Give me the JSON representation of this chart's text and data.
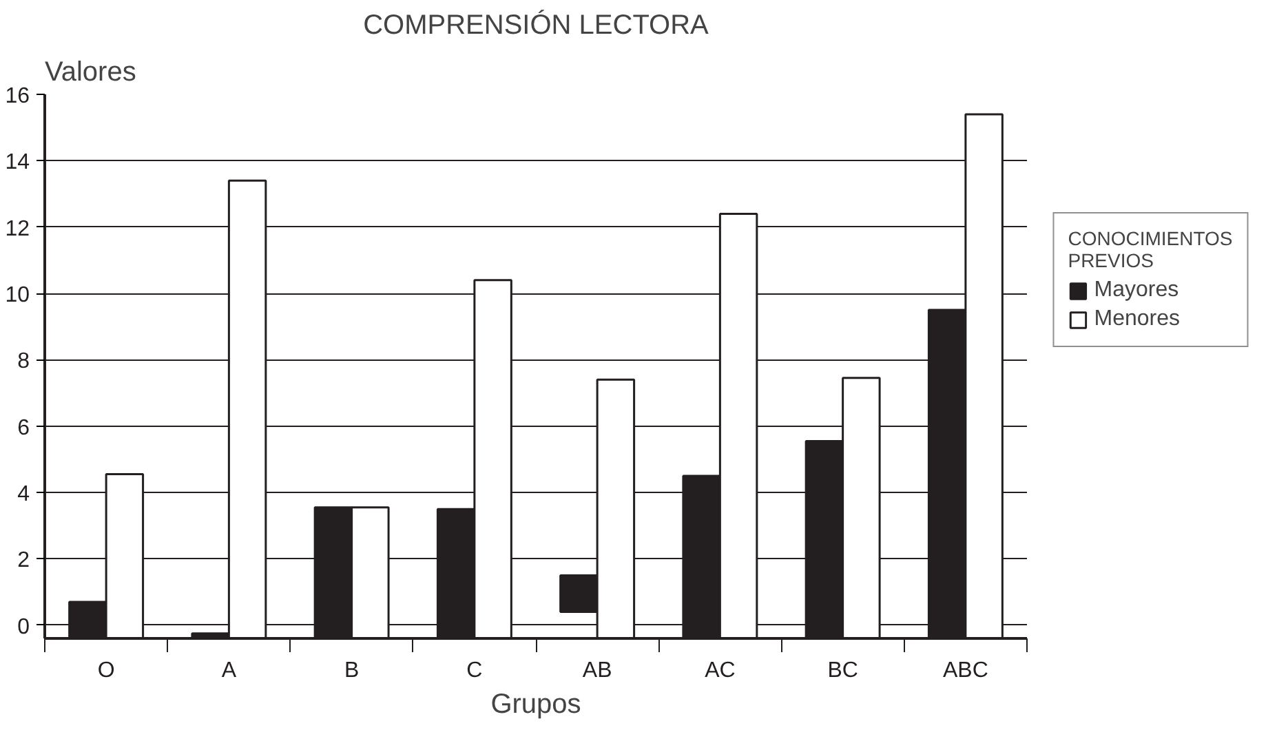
{
  "chart_data": {
    "type": "bar",
    "title": "COMPRENSIÓN LECTORA",
    "xlabel": "Grupos",
    "ylabel": "Valores",
    "legend_title": "CONOCIMIENTOS PREVIOS",
    "categories": [
      "O",
      "A",
      "B",
      "C",
      "AB",
      "AC",
      "BC",
      "ABC"
    ],
    "series": [
      {
        "name": "Mayores",
        "color": "#231f20",
        "base": [
          -0.4,
          -0.4,
          -0.4,
          -0.4,
          0.4,
          -0.4,
          -0.4,
          -0.4
        ],
        "values": [
          1.1,
          0.15,
          3.95,
          3.9,
          1.1,
          4.9,
          5.95,
          9.9
        ]
      },
      {
        "name": "Menores",
        "color": "#ffffff",
        "base": [
          -0.4,
          -0.4,
          -0.4,
          -0.4,
          -0.4,
          -0.4,
          -0.4,
          -0.4
        ],
        "values": [
          4.95,
          13.8,
          3.95,
          10.8,
          7.8,
          12.8,
          7.85,
          15.8
        ]
      }
    ],
    "ylim": [
      -0.4,
      16
    ],
    "yticks": [
      0,
      2,
      4,
      6,
      8,
      10,
      12,
      14,
      16
    ],
    "grid": "y",
    "legend": "right"
  }
}
